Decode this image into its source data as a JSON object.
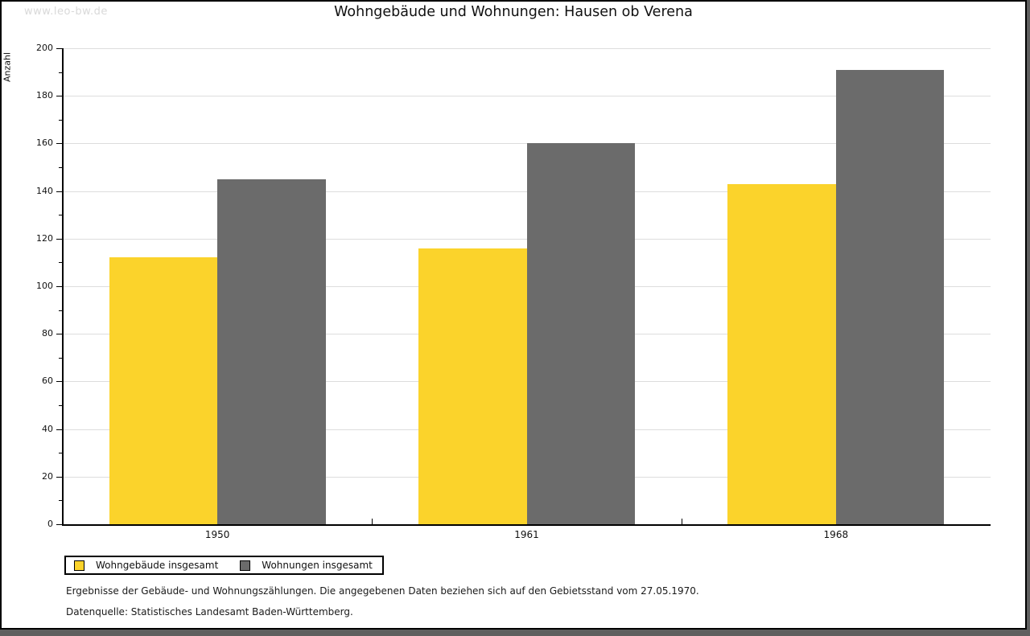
{
  "watermark": "www.leo-bw.de",
  "title": "Wohngebäude und Wohnungen: Hausen ob Verena",
  "chart_data": {
    "type": "bar",
    "title": "Wohngebäude und Wohnungen: Hausen ob Verena",
    "categories": [
      "1950",
      "1961",
      "1968"
    ],
    "series": [
      {
        "name": "Wohngebäude insgesamt",
        "color": "#fbd32b",
        "values": [
          112,
          116,
          143
        ]
      },
      {
        "name": "Wohnungen insgesamt",
        "color": "#6b6b6b",
        "values": [
          145,
          160,
          191
        ]
      }
    ],
    "xlabel": "",
    "ylabel": "Anzahl",
    "ylim": [
      0,
      200
    ],
    "ytick_step": 20,
    "minor_tick_step": 10,
    "grid": true,
    "gridline_color": "#dddddd",
    "legend_position": "bottom-left"
  },
  "footnotes": {
    "line1": "Ergebnisse der Gebäude- und Wohnungszählungen. Die angegebenen Daten beziehen sich auf den Gebietsstand vom 27.05.1970.",
    "line2": "Datenquelle: Statistisches Landesamt Baden-Württemberg."
  }
}
